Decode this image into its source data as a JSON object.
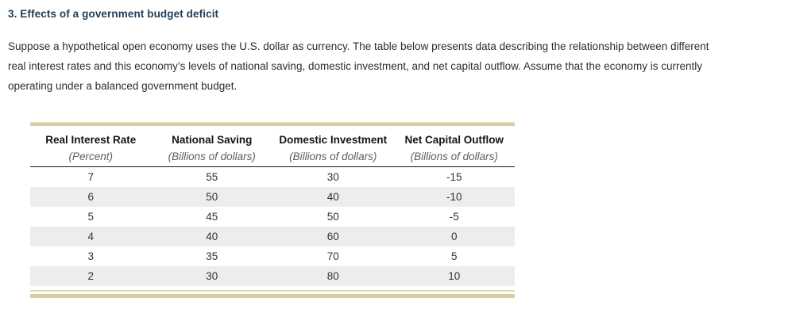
{
  "page": {
    "title": "3. Effects of a government budget deficit"
  },
  "intro": {
    "lines": [
      "Suppose a hypothetical open economy uses the U.S. dollar as currency. The table below presents data describing the relationship between different",
      "real interest rates and this economy’s levels of national saving, domestic investment, and net capital outflow. Assume that the economy is currently",
      "operating under a balanced government budget."
    ]
  },
  "table": {
    "columns": [
      {
        "title": "Real Interest Rate",
        "subtitle": "(Percent)"
      },
      {
        "title": "National Saving",
        "subtitle": "(Billions of dollars)"
      },
      {
        "title": "Domestic Investment",
        "subtitle": "(Billions of dollars)"
      },
      {
        "title": "Net Capital Outflow",
        "subtitle": "(Billions of dollars)"
      }
    ],
    "rows": [
      [
        "7",
        "55",
        "30",
        "-15"
      ],
      [
        "6",
        "50",
        "40",
        "-10"
      ],
      [
        "5",
        "45",
        "50",
        "-5"
      ],
      [
        "4",
        "40",
        "60",
        "0"
      ],
      [
        "3",
        "35",
        "70",
        "5"
      ],
      [
        "2",
        "30",
        "80",
        "10"
      ]
    ]
  },
  "colors": {
    "title_navy": "#1d3e59",
    "table_rule_tan": "#d6cfa2",
    "header_rule_black": "#1a1a1a",
    "alt_row_gray": "#ededed",
    "body_text": "#2d2d2d",
    "subtitle_gray": "#5f5f5f"
  }
}
